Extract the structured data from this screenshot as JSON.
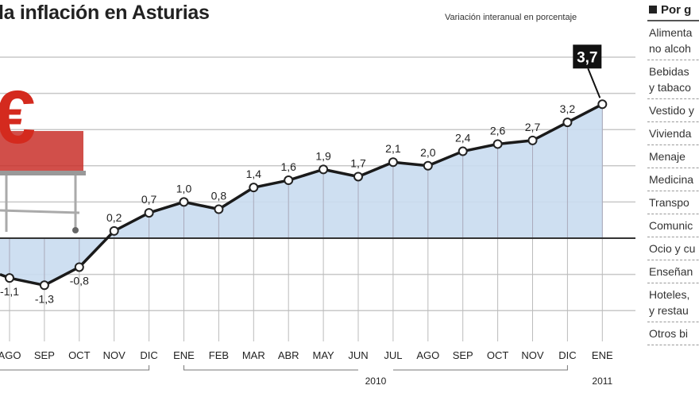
{
  "title": "la inflación en Asturias",
  "subtitle": "Variación interanual en porcentaje",
  "sidebar": {
    "header": "Por g",
    "items": [
      "Alimenta\nno alcoh",
      "Bebidas\ny tabaco",
      "Vestido y",
      "Vivienda",
      "Menaje",
      "Medicina",
      "Transpo",
      "Comunic",
      "Ocio y cu",
      "Enseñan",
      "Hoteles,\ny restau",
      "Otros bi"
    ]
  },
  "colors": {
    "fill": "#c9dcf0",
    "line": "#1a1a1a",
    "euro": "#d42a1e"
  },
  "chart_data": {
    "type": "area",
    "title": "la inflación en Asturias",
    "ylabel": "Variación interanual en porcentaje",
    "categories": [
      "AGO",
      "SEP",
      "OCT",
      "NOV",
      "DIC",
      "ENE",
      "FEB",
      "MAR",
      "ABR",
      "MAY",
      "JUN",
      "JUL",
      "AGO",
      "SEP",
      "OCT",
      "NOV",
      "DIC",
      "ENE"
    ],
    "values": [
      -1.1,
      -1.3,
      -0.8,
      0.2,
      0.7,
      1.0,
      0.8,
      1.4,
      1.6,
      1.9,
      1.7,
      2.1,
      2.0,
      2.4,
      2.6,
      2.7,
      3.2,
      3.7
    ],
    "labels": [
      "-1,1",
      "-1,3",
      "-0,8",
      "0,2",
      "0,7",
      "1,0",
      "0,8",
      "1,4",
      "1,6",
      "1,9",
      "1,7",
      "2,1",
      "2,0",
      "2,4",
      "2,6",
      "2,7",
      "3,2",
      "3,7"
    ],
    "year_groups": [
      {
        "label": "2010",
        "from": 5,
        "to": 16
      },
      {
        "label": "2011",
        "from": 17,
        "to": 17
      }
    ],
    "ylim": [
      -2.8,
      5
    ],
    "grid": true,
    "highlight_last": true
  }
}
